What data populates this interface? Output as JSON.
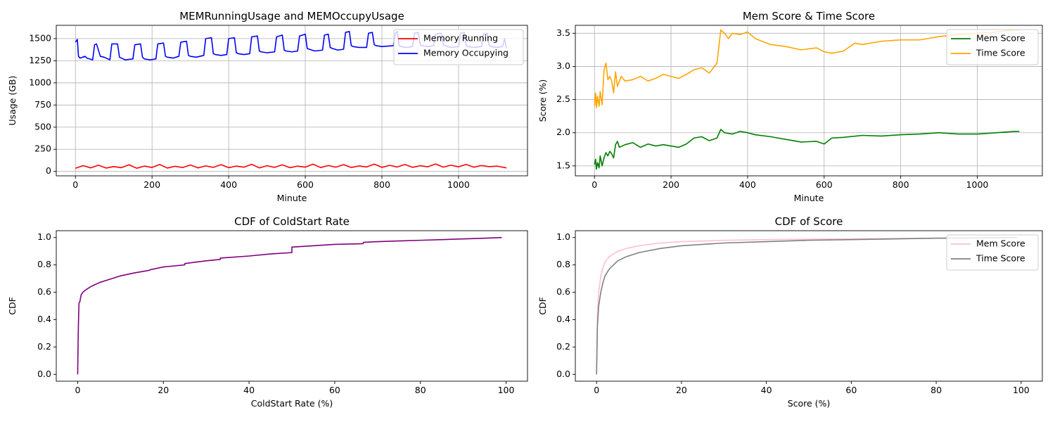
{
  "chart_data": [
    {
      "type": "line",
      "title": "MEMRunningUsage and MEMOccupyUsage",
      "xlabel": "Minute",
      "ylabel": "Usage (GB)",
      "xlim": [
        -50,
        1180
      ],
      "ylim": [
        -50,
        1650
      ],
      "xticks": [
        0,
        200,
        400,
        600,
        800,
        1000
      ],
      "yticks": [
        0,
        250,
        500,
        750,
        1000,
        1250,
        1500
      ],
      "grid": true,
      "legend_position": "upper right",
      "series": [
        {
          "name": "Memory Running",
          "color": "#ff0000",
          "x": [
            0,
            20,
            40,
            60,
            80,
            100,
            120,
            140,
            160,
            180,
            200,
            220,
            240,
            260,
            280,
            300,
            320,
            340,
            360,
            380,
            400,
            420,
            440,
            460,
            480,
            500,
            520,
            540,
            560,
            580,
            600,
            620,
            640,
            660,
            680,
            700,
            720,
            740,
            760,
            780,
            800,
            820,
            840,
            860,
            880,
            900,
            920,
            940,
            960,
            980,
            1000,
            1020,
            1040,
            1060,
            1080,
            1100,
            1125
          ],
          "values": [
            35,
            65,
            40,
            70,
            38,
            55,
            42,
            75,
            36,
            60,
            45,
            78,
            38,
            58,
            44,
            72,
            40,
            62,
            46,
            76,
            42,
            60,
            48,
            80,
            40,
            64,
            46,
            74,
            42,
            60,
            48,
            82,
            44,
            66,
            48,
            76,
            44,
            62,
            50,
            82,
            46,
            68,
            50,
            78,
            46,
            64,
            52,
            84,
            48,
            70,
            52,
            78,
            48,
            66,
            54,
            60,
            40
          ]
        },
        {
          "name": "Memory Occupying",
          "color": "#0000ff",
          "x": [
            0,
            5,
            8,
            12,
            25,
            30,
            45,
            50,
            55,
            65,
            75,
            90,
            95,
            110,
            115,
            120,
            130,
            150,
            155,
            170,
            175,
            180,
            195,
            210,
            215,
            230,
            235,
            240,
            255,
            270,
            275,
            290,
            295,
            300,
            315,
            335,
            340,
            355,
            360,
            365,
            380,
            395,
            400,
            415,
            420,
            425,
            440,
            455,
            460,
            475,
            480,
            485,
            500,
            520,
            525,
            540,
            545,
            550,
            565,
            580,
            585,
            600,
            605,
            610,
            625,
            645,
            650,
            660,
            665,
            670,
            685,
            700,
            705,
            715,
            720,
            725,
            740,
            760,
            765,
            775,
            780,
            785,
            800,
            830,
            835,
            840,
            845,
            850,
            865,
            880,
            885,
            895,
            900,
            905,
            920,
            935,
            940,
            955,
            960,
            965,
            980,
            1000,
            1005,
            1015,
            1020,
            1025,
            1040,
            1060,
            1065,
            1075,
            1080,
            1085,
            1100,
            1115,
            1120,
            1125
          ],
          "values": [
            1460,
            1490,
            1300,
            1280,
            1300,
            1280,
            1260,
            1430,
            1440,
            1300,
            1290,
            1260,
            1440,
            1440,
            1290,
            1280,
            1260,
            1270,
            1430,
            1440,
            1290,
            1270,
            1260,
            1270,
            1440,
            1450,
            1300,
            1290,
            1280,
            1300,
            1460,
            1470,
            1310,
            1300,
            1290,
            1310,
            1500,
            1510,
            1330,
            1320,
            1310,
            1320,
            1500,
            1510,
            1340,
            1330,
            1320,
            1330,
            1520,
            1530,
            1360,
            1350,
            1340,
            1350,
            1520,
            1540,
            1370,
            1360,
            1350,
            1360,
            1530,
            1550,
            1390,
            1380,
            1360,
            1370,
            1540,
            1550,
            1400,
            1390,
            1370,
            1380,
            1570,
            1580,
            1420,
            1410,
            1400,
            1400,
            1560,
            1570,
            1430,
            1420,
            1410,
            1420,
            1560,
            1580,
            1420,
            1410,
            1400,
            1410,
            1560,
            1570,
            1430,
            1420,
            1410,
            1420,
            1550,
            1560,
            1430,
            1420,
            1400,
            1410,
            1560,
            1570,
            1420,
            1410,
            1400,
            1410,
            1550,
            1560,
            1420,
            1410,
            1400,
            1410,
            1500,
            1390
          ]
        }
      ]
    },
    {
      "type": "line",
      "title": "Mem Score & Time Score",
      "xlabel": "Minute",
      "ylabel": "Score (%)",
      "xlim": [
        -50,
        1170
      ],
      "ylim": [
        1.35,
        3.62
      ],
      "xticks": [
        0,
        200,
        400,
        600,
        800,
        1000
      ],
      "yticks": [
        1.5,
        2.0,
        2.5,
        3.0,
        3.5
      ],
      "grid": true,
      "legend_position": "upper right",
      "series": [
        {
          "name": "Mem Score",
          "color": "#008000",
          "x": [
            0,
            3,
            5,
            8,
            12,
            15,
            20,
            25,
            30,
            35,
            40,
            45,
            50,
            55,
            60,
            65,
            80,
            100,
            120,
            140,
            160,
            180,
            200,
            220,
            240,
            260,
            280,
            300,
            320,
            330,
            340,
            360,
            380,
            400,
            420,
            460,
            500,
            540,
            580,
            600,
            620,
            650,
            700,
            750,
            800,
            850,
            900,
            950,
            1000,
            1050,
            1100,
            1110
          ],
          "values": [
            1.52,
            1.6,
            1.45,
            1.55,
            1.47,
            1.65,
            1.5,
            1.62,
            1.7,
            1.65,
            1.72,
            1.68,
            1.62,
            1.82,
            1.87,
            1.78,
            1.82,
            1.85,
            1.78,
            1.83,
            1.8,
            1.82,
            1.8,
            1.78,
            1.83,
            1.92,
            1.94,
            1.88,
            1.92,
            2.05,
            2.0,
            1.98,
            2.02,
            2.0,
            1.97,
            1.94,
            1.9,
            1.86,
            1.87,
            1.83,
            1.92,
            1.93,
            1.96,
            1.95,
            1.97,
            1.98,
            2.0,
            1.98,
            1.98,
            2.0,
            2.02,
            2.02
          ]
        },
        {
          "name": "Time Score",
          "color": "#ffa500",
          "x": [
            0,
            3,
            5,
            8,
            12,
            15,
            20,
            25,
            30,
            35,
            40,
            45,
            50,
            55,
            60,
            70,
            80,
            100,
            120,
            140,
            160,
            180,
            200,
            220,
            240,
            260,
            280,
            300,
            320,
            325,
            330,
            340,
            350,
            360,
            380,
            400,
            420,
            460,
            500,
            540,
            580,
            600,
            620,
            650,
            680,
            700,
            750,
            800,
            850,
            900,
            950,
            1000,
            1050,
            1100,
            1110
          ],
          "values": [
            2.4,
            2.6,
            2.38,
            2.55,
            2.4,
            2.62,
            2.42,
            2.95,
            3.05,
            2.8,
            2.85,
            2.78,
            2.6,
            2.92,
            2.7,
            2.85,
            2.78,
            2.8,
            2.85,
            2.78,
            2.82,
            2.88,
            2.85,
            2.82,
            2.88,
            2.95,
            2.98,
            2.9,
            3.05,
            3.3,
            3.55,
            3.5,
            3.42,
            3.5,
            3.48,
            3.52,
            3.42,
            3.33,
            3.3,
            3.25,
            3.28,
            3.22,
            3.2,
            3.23,
            3.35,
            3.33,
            3.38,
            3.4,
            3.4,
            3.45,
            3.48,
            3.5,
            3.52,
            3.55,
            3.55
          ]
        }
      ]
    },
    {
      "type": "line",
      "title": "CDF of ColdStart Rate",
      "xlabel": "ColdStart Rate (%)",
      "ylabel": "CDF",
      "xlim": [
        -5,
        105
      ],
      "ylim": [
        -0.05,
        1.05
      ],
      "xticks": [
        0,
        20,
        40,
        60,
        80,
        100
      ],
      "yticks": [
        0.0,
        0.2,
        0.4,
        0.6,
        0.8,
        1.0
      ],
      "grid": false,
      "series": [
        {
          "name": "",
          "color": "#800080",
          "x": [
            0,
            0.1,
            0.2,
            0.3,
            0.5,
            0.8,
            1.2,
            2,
            3,
            5,
            7,
            10,
            13,
            16.6,
            17,
            20,
            25,
            25,
            30,
            33.3,
            33.3,
            40,
            45,
            50,
            50,
            55,
            60,
            66.6,
            66.7,
            70,
            75,
            80,
            85,
            90,
            95,
            99
          ],
          "values": [
            0.0,
            0.25,
            0.4,
            0.52,
            0.53,
            0.58,
            0.6,
            0.62,
            0.64,
            0.67,
            0.69,
            0.72,
            0.74,
            0.76,
            0.765,
            0.785,
            0.8,
            0.81,
            0.83,
            0.84,
            0.85,
            0.865,
            0.88,
            0.89,
            0.93,
            0.94,
            0.95,
            0.955,
            0.965,
            0.97,
            0.975,
            0.98,
            0.985,
            0.99,
            0.995,
            1.0
          ]
        }
      ]
    },
    {
      "type": "line",
      "title": "CDF of Score",
      "xlabel": "Score (%)",
      "ylabel": "CDF",
      "xlim": [
        -5,
        105
      ],
      "ylim": [
        -0.05,
        1.05
      ],
      "xticks": [
        0,
        20,
        40,
        60,
        80,
        100
      ],
      "yticks": [
        0.0,
        0.2,
        0.4,
        0.6,
        0.8,
        1.0
      ],
      "grid": false,
      "legend_position": "upper right",
      "series": [
        {
          "name": "Mem Score",
          "color": "#ffc0cb",
          "x": [
            0,
            0.2,
            0.5,
            1,
            1.5,
            2,
            3,
            4,
            5,
            7,
            10,
            15,
            20,
            30,
            40,
            60,
            80,
            99
          ],
          "values": [
            0.0,
            0.45,
            0.6,
            0.72,
            0.78,
            0.82,
            0.86,
            0.88,
            0.9,
            0.92,
            0.94,
            0.96,
            0.97,
            0.98,
            0.985,
            0.99,
            0.995,
            1.0
          ]
        },
        {
          "name": "Time Score",
          "color": "#808080",
          "x": [
            0,
            0.2,
            0.5,
            1,
            1.5,
            2,
            3,
            4,
            5,
            7,
            10,
            15,
            20,
            30,
            40,
            50,
            60,
            80,
            99
          ],
          "values": [
            0.0,
            0.35,
            0.5,
            0.6,
            0.67,
            0.72,
            0.77,
            0.8,
            0.83,
            0.86,
            0.89,
            0.92,
            0.94,
            0.96,
            0.97,
            0.98,
            0.985,
            0.995,
            1.0
          ]
        }
      ]
    }
  ]
}
